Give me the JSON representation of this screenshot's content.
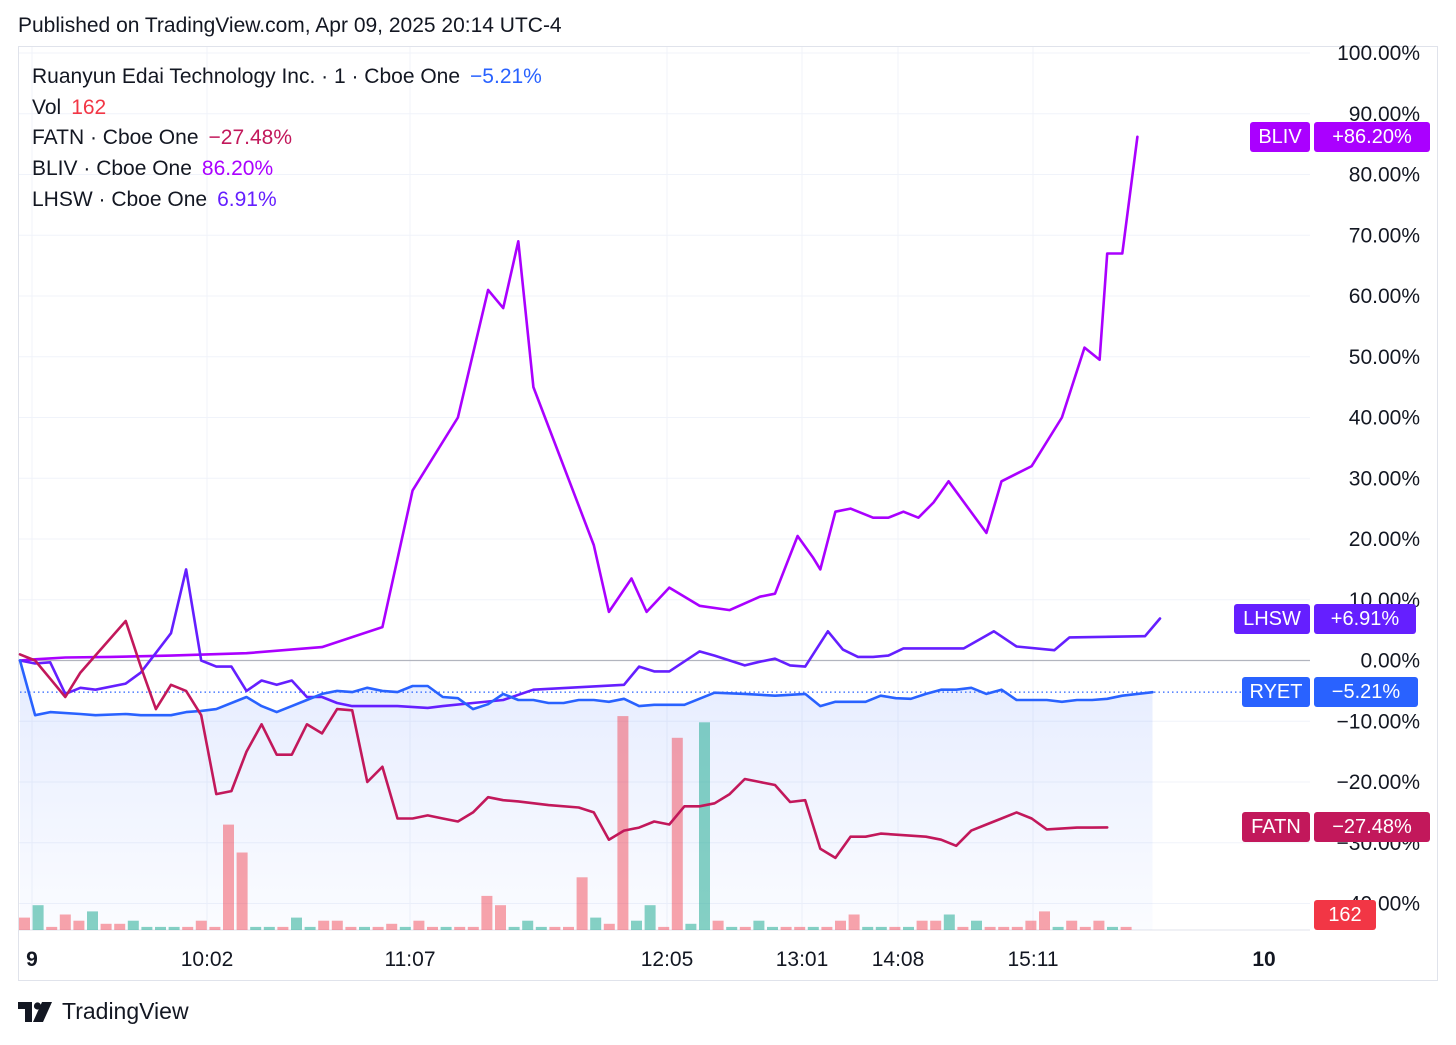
{
  "header": {
    "published": "Published on TradingView.com, Apr 09, 2025 20:14 UTC-4"
  },
  "legend": [
    {
      "label": "Ruanyun Edai Technology Inc. · 1 · Cboe One",
      "value": "−5.21%",
      "color": "#2962ff"
    },
    {
      "label": "Vol",
      "value": "162",
      "color": "#f23645"
    },
    {
      "label": "FATN · Cboe One",
      "value": "−27.48%",
      "color": "#c2185b"
    },
    {
      "label": "BLIV · Cboe One",
      "value": "86.20%",
      "color": "#aa00ff"
    },
    {
      "label": "LHSW · Cboe One",
      "value": "6.91%",
      "color": "#651fff"
    }
  ],
  "tags": {
    "bliv": {
      "symbol": "BLIV",
      "value": "+86.20%",
      "color": "#aa00ff"
    },
    "lhsw": {
      "symbol": "LHSW",
      "value": "+6.91%",
      "color": "#651fff"
    },
    "ryet": {
      "symbol": "RYET",
      "value": "−5.21%",
      "color": "#2962ff"
    },
    "fatn": {
      "symbol": "FATN",
      "value": "−27.48%",
      "color": "#c2185b"
    },
    "vol": {
      "value": "162",
      "color": "#f23645"
    }
  },
  "brand": {
    "name": "TradingView"
  },
  "chart_data": {
    "type": "line",
    "title": "",
    "xlabel": "",
    "ylabel": "",
    "x_ticks": [
      "9",
      "10:02",
      "11:07",
      "12:05",
      "13:01",
      "14:08",
      "15:11",
      "10"
    ],
    "y_ticks": [
      "100.00%",
      "90.00%",
      "80.00%",
      "70.00%",
      "60.00%",
      "50.00%",
      "40.00%",
      "30.00%",
      "20.00%",
      "10.00%",
      "0.00%",
      "−10.00%",
      "−20.00%",
      "−30.00%",
      "−40.00%"
    ],
    "ylim": [
      -43,
      100
    ],
    "grid": true,
    "legend": "top-left",
    "series": [
      {
        "name": "BLIV",
        "color": "#aa00ff",
        "values": [
          [
            0,
            0
          ],
          [
            1,
            0.2
          ],
          [
            3,
            0.5
          ],
          [
            6,
            0.6
          ],
          [
            10,
            0.8
          ],
          [
            15,
            1.2
          ],
          [
            20,
            2.2
          ],
          [
            24,
            5.5
          ],
          [
            26,
            28
          ],
          [
            29,
            40
          ],
          [
            31,
            61
          ],
          [
            32,
            58
          ],
          [
            33,
            69
          ],
          [
            34,
            45
          ],
          [
            38,
            19
          ],
          [
            39,
            8
          ],
          [
            40.5,
            13.5
          ],
          [
            41.5,
            8
          ],
          [
            43,
            12
          ],
          [
            45,
            9
          ],
          [
            47,
            8.3
          ],
          [
            49,
            10.5
          ],
          [
            50,
            11
          ],
          [
            51.5,
            20.5
          ],
          [
            52.5,
            17
          ],
          [
            53,
            15
          ],
          [
            54,
            24.5
          ],
          [
            55,
            25
          ],
          [
            56.5,
            23.5
          ],
          [
            57.5,
            23.5
          ],
          [
            58.5,
            24.5
          ],
          [
            59.5,
            23.5
          ],
          [
            60.5,
            26
          ],
          [
            61.5,
            29.5
          ],
          [
            64,
            21
          ],
          [
            65,
            29.5
          ],
          [
            67,
            32
          ],
          [
            69,
            40
          ],
          [
            70.5,
            51.5
          ],
          [
            71.5,
            49.5
          ],
          [
            72,
            67
          ],
          [
            73,
            67
          ],
          [
            74,
            86.2
          ]
        ]
      },
      {
        "name": "LHSW",
        "color": "#651fff",
        "values": [
          [
            0,
            0
          ],
          [
            1,
            -0.5
          ],
          [
            2,
            -0.3
          ],
          [
            3,
            -5.5
          ],
          [
            4,
            -4.5
          ],
          [
            5,
            -4.8
          ],
          [
            7,
            -3.8
          ],
          [
            8,
            -2
          ],
          [
            10,
            4.5
          ],
          [
            11,
            15
          ],
          [
            12,
            0
          ],
          [
            13,
            -1
          ],
          [
            14,
            -1
          ],
          [
            15,
            -5
          ],
          [
            16,
            -3.3
          ],
          [
            17,
            -4
          ],
          [
            18,
            -3.3
          ],
          [
            19,
            -6
          ],
          [
            20,
            -6
          ],
          [
            21,
            -7
          ],
          [
            22,
            -7.5
          ],
          [
            25,
            -7.5
          ],
          [
            27,
            -7.8
          ],
          [
            28,
            -7.5
          ],
          [
            30,
            -7
          ],
          [
            32,
            -6.5
          ],
          [
            34,
            -4.8
          ],
          [
            40,
            -4
          ],
          [
            41,
            -1
          ],
          [
            42,
            -1.8
          ],
          [
            43,
            -1.8
          ],
          [
            45,
            1.5
          ],
          [
            46,
            0.8
          ],
          [
            47,
            0
          ],
          [
            48,
            -0.8
          ],
          [
            49,
            -0.2
          ],
          [
            50,
            0.3
          ],
          [
            51,
            -0.8
          ],
          [
            52,
            -1
          ],
          [
            53.5,
            4.8
          ],
          [
            54.5,
            1.8
          ],
          [
            55.5,
            0.6
          ],
          [
            56.5,
            0.6
          ],
          [
            57.5,
            0.8
          ],
          [
            58.5,
            2
          ],
          [
            62.5,
            2
          ],
          [
            64.5,
            4.8
          ],
          [
            66,
            2.3
          ],
          [
            68.5,
            1.7
          ],
          [
            69.5,
            3.8
          ],
          [
            74.5,
            4
          ],
          [
            75.5,
            6.91
          ]
        ]
      },
      {
        "name": "RYET",
        "color": "#2962ff",
        "values": [
          [
            0,
            0
          ],
          [
            1,
            -9
          ],
          [
            2,
            -8.5
          ],
          [
            4,
            -8.8
          ],
          [
            5,
            -9
          ],
          [
            7,
            -8.8
          ],
          [
            8,
            -9
          ],
          [
            10,
            -9
          ],
          [
            11,
            -8.5
          ],
          [
            12,
            -8.3
          ],
          [
            13,
            -8
          ],
          [
            15,
            -6
          ],
          [
            16,
            -7.5
          ],
          [
            17,
            -8.5
          ],
          [
            18,
            -7.5
          ],
          [
            19,
            -6.5
          ],
          [
            20,
            -5.5
          ],
          [
            21,
            -5
          ],
          [
            22,
            -5.2
          ],
          [
            23,
            -4.5
          ],
          [
            24,
            -5
          ],
          [
            25,
            -5.2
          ],
          [
            26,
            -4.2
          ],
          [
            27,
            -4.2
          ],
          [
            28,
            -6
          ],
          [
            29,
            -6.2
          ],
          [
            30,
            -8
          ],
          [
            31,
            -7.2
          ],
          [
            32,
            -5.5
          ],
          [
            33,
            -6.5
          ],
          [
            34,
            -6.5
          ],
          [
            35,
            -7
          ],
          [
            36,
            -7
          ],
          [
            37,
            -6.5
          ],
          [
            38,
            -6.5
          ],
          [
            39,
            -6.8
          ],
          [
            40,
            -6.3
          ],
          [
            41,
            -7.5
          ],
          [
            42,
            -7.3
          ],
          [
            44,
            -7.3
          ],
          [
            46,
            -5.3
          ],
          [
            48,
            -5.5
          ],
          [
            50,
            -5.8
          ],
          [
            52,
            -5.5
          ],
          [
            53,
            -7.5
          ],
          [
            54,
            -6.8
          ],
          [
            56,
            -6.8
          ],
          [
            57,
            -5.8
          ],
          [
            58,
            -6.2
          ],
          [
            59,
            -6.3
          ],
          [
            60,
            -5.5
          ],
          [
            61,
            -4.8
          ],
          [
            62,
            -4.8
          ],
          [
            63,
            -4.5
          ],
          [
            64,
            -5.5
          ],
          [
            65,
            -4.8
          ],
          [
            66,
            -6.5
          ],
          [
            68,
            -6.5
          ],
          [
            69,
            -6.8
          ],
          [
            70,
            -6.5
          ],
          [
            71,
            -6.5
          ],
          [
            72,
            -6.3
          ],
          [
            73,
            -5.8
          ],
          [
            74,
            -5.5
          ],
          [
            75,
            -5.21
          ]
        ]
      },
      {
        "name": "FATN",
        "color": "#c2185b",
        "values": [
          [
            0,
            1
          ],
          [
            1,
            0
          ],
          [
            2,
            -3
          ],
          [
            3,
            -6
          ],
          [
            4,
            -2
          ],
          [
            7,
            6.5
          ],
          [
            8,
            -1
          ],
          [
            9,
            -8
          ],
          [
            10,
            -4
          ],
          [
            11,
            -5
          ],
          [
            12,
            -9
          ],
          [
            13,
            -22
          ],
          [
            14,
            -21.5
          ],
          [
            15,
            -15
          ],
          [
            16,
            -10.5
          ],
          [
            17,
            -15.5
          ],
          [
            18,
            -15.5
          ],
          [
            19,
            -10.5
          ],
          [
            20,
            -12
          ],
          [
            21,
            -8
          ],
          [
            22,
            -8.2
          ],
          [
            23,
            -20
          ],
          [
            24,
            -17.5
          ],
          [
            25,
            -26
          ],
          [
            26,
            -26
          ],
          [
            27,
            -25.5
          ],
          [
            28,
            -26
          ],
          [
            29,
            -26.5
          ],
          [
            30,
            -25
          ],
          [
            31,
            -22.5
          ],
          [
            32,
            -23
          ],
          [
            33,
            -23.2
          ],
          [
            35,
            -23.8
          ],
          [
            37,
            -24.2
          ],
          [
            38,
            -25
          ],
          [
            39,
            -29.5
          ],
          [
            40,
            -28
          ],
          [
            41,
            -27.5
          ],
          [
            42,
            -26.5
          ],
          [
            43,
            -27
          ],
          [
            44,
            -24
          ],
          [
            45,
            -24
          ],
          [
            46,
            -23.5
          ],
          [
            47,
            -22
          ],
          [
            48,
            -19.5
          ],
          [
            49,
            -20
          ],
          [
            50,
            -20.5
          ],
          [
            51,
            -23.3
          ],
          [
            52,
            -23
          ],
          [
            53,
            -31
          ],
          [
            54,
            -32.5
          ],
          [
            55,
            -29
          ],
          [
            56,
            -29
          ],
          [
            57,
            -28.5
          ],
          [
            60,
            -29
          ],
          [
            61,
            -29.5
          ],
          [
            62,
            -30.5
          ],
          [
            63,
            -28
          ],
          [
            64,
            -27
          ],
          [
            65,
            -26
          ],
          [
            66,
            -25
          ],
          [
            67,
            -26
          ],
          [
            68,
            -27.8
          ],
          [
            70,
            -27.5
          ],
          [
            71,
            -27.5
          ],
          [
            72,
            -27.48
          ]
        ]
      }
    ],
    "volume": [
      {
        "v": 2,
        "c": "r"
      },
      {
        "v": 4,
        "c": "g"
      },
      {
        "v": 0.5,
        "c": "r"
      },
      {
        "v": 2.5,
        "c": "r"
      },
      {
        "v": 1.5,
        "c": "r"
      },
      {
        "v": 3,
        "c": "g"
      },
      {
        "v": 1,
        "c": "r"
      },
      {
        "v": 1,
        "c": "r"
      },
      {
        "v": 1.5,
        "c": "g"
      },
      {
        "v": 0.5,
        "c": "g"
      },
      {
        "v": 0.5,
        "c": "g"
      },
      {
        "v": 0.5,
        "c": "g"
      },
      {
        "v": 0.5,
        "c": "r"
      },
      {
        "v": 1.5,
        "c": "r"
      },
      {
        "v": 0.5,
        "c": "r"
      },
      {
        "v": 17,
        "c": "r"
      },
      {
        "v": 12.5,
        "c": "r"
      },
      {
        "v": 0.5,
        "c": "g"
      },
      {
        "v": 0.5,
        "c": "g"
      },
      {
        "v": 0.5,
        "c": "r"
      },
      {
        "v": 2,
        "c": "g"
      },
      {
        "v": 0.5,
        "c": "g"
      },
      {
        "v": 1.5,
        "c": "r"
      },
      {
        "v": 1.5,
        "c": "r"
      },
      {
        "v": 0.5,
        "c": "r"
      },
      {
        "v": 0.5,
        "c": "g"
      },
      {
        "v": 0.5,
        "c": "r"
      },
      {
        "v": 1,
        "c": "r"
      },
      {
        "v": 0.5,
        "c": "g"
      },
      {
        "v": 1.5,
        "c": "r"
      },
      {
        "v": 0.5,
        "c": "r"
      },
      {
        "v": 0.5,
        "c": "g"
      },
      {
        "v": 0.5,
        "c": "r"
      },
      {
        "v": 0.5,
        "c": "r"
      },
      {
        "v": 5.5,
        "c": "r"
      },
      {
        "v": 4,
        "c": "r"
      },
      {
        "v": 0.5,
        "c": "g"
      },
      {
        "v": 1.5,
        "c": "g"
      },
      {
        "v": 0.5,
        "c": "g"
      },
      {
        "v": 0.5,
        "c": "r"
      },
      {
        "v": 0.5,
        "c": "r"
      },
      {
        "v": 8.5,
        "c": "r"
      },
      {
        "v": 2,
        "c": "g"
      },
      {
        "v": 1,
        "c": "r"
      },
      {
        "v": 34.5,
        "c": "r"
      },
      {
        "v": 1.5,
        "c": "g"
      },
      {
        "v": 4,
        "c": "g"
      },
      {
        "v": 0.5,
        "c": "r"
      },
      {
        "v": 31,
        "c": "r"
      },
      {
        "v": 1,
        "c": "g"
      },
      {
        "v": 33.5,
        "c": "g"
      },
      {
        "v": 1.5,
        "c": "r"
      },
      {
        "v": 0.5,
        "c": "g"
      },
      {
        "v": 0.5,
        "c": "r"
      },
      {
        "v": 1.5,
        "c": "g"
      },
      {
        "v": 0.5,
        "c": "g"
      },
      {
        "v": 0.5,
        "c": "r"
      },
      {
        "v": 0.5,
        "c": "r"
      },
      {
        "v": 0.5,
        "c": "g"
      },
      {
        "v": 0.5,
        "c": "r"
      },
      {
        "v": 1.5,
        "c": "r"
      },
      {
        "v": 2.5,
        "c": "r"
      },
      {
        "v": 0.5,
        "c": "g"
      },
      {
        "v": 0.5,
        "c": "g"
      },
      {
        "v": 0.5,
        "c": "r"
      },
      {
        "v": 0.5,
        "c": "g"
      },
      {
        "v": 1.5,
        "c": "r"
      },
      {
        "v": 1.5,
        "c": "r"
      },
      {
        "v": 2.5,
        "c": "g"
      },
      {
        "v": 0.5,
        "c": "r"
      },
      {
        "v": 1.5,
        "c": "g"
      },
      {
        "v": 0.5,
        "c": "r"
      },
      {
        "v": 0.5,
        "c": "r"
      },
      {
        "v": 0.5,
        "c": "r"
      },
      {
        "v": 1.5,
        "c": "r"
      },
      {
        "v": 3,
        "c": "r"
      },
      {
        "v": 0.5,
        "c": "g"
      },
      {
        "v": 1.5,
        "c": "r"
      },
      {
        "v": 0.5,
        "c": "r"
      },
      {
        "v": 1.5,
        "c": "r"
      },
      {
        "v": 0.5,
        "c": "g"
      },
      {
        "v": 0.5,
        "c": "r"
      }
    ]
  }
}
